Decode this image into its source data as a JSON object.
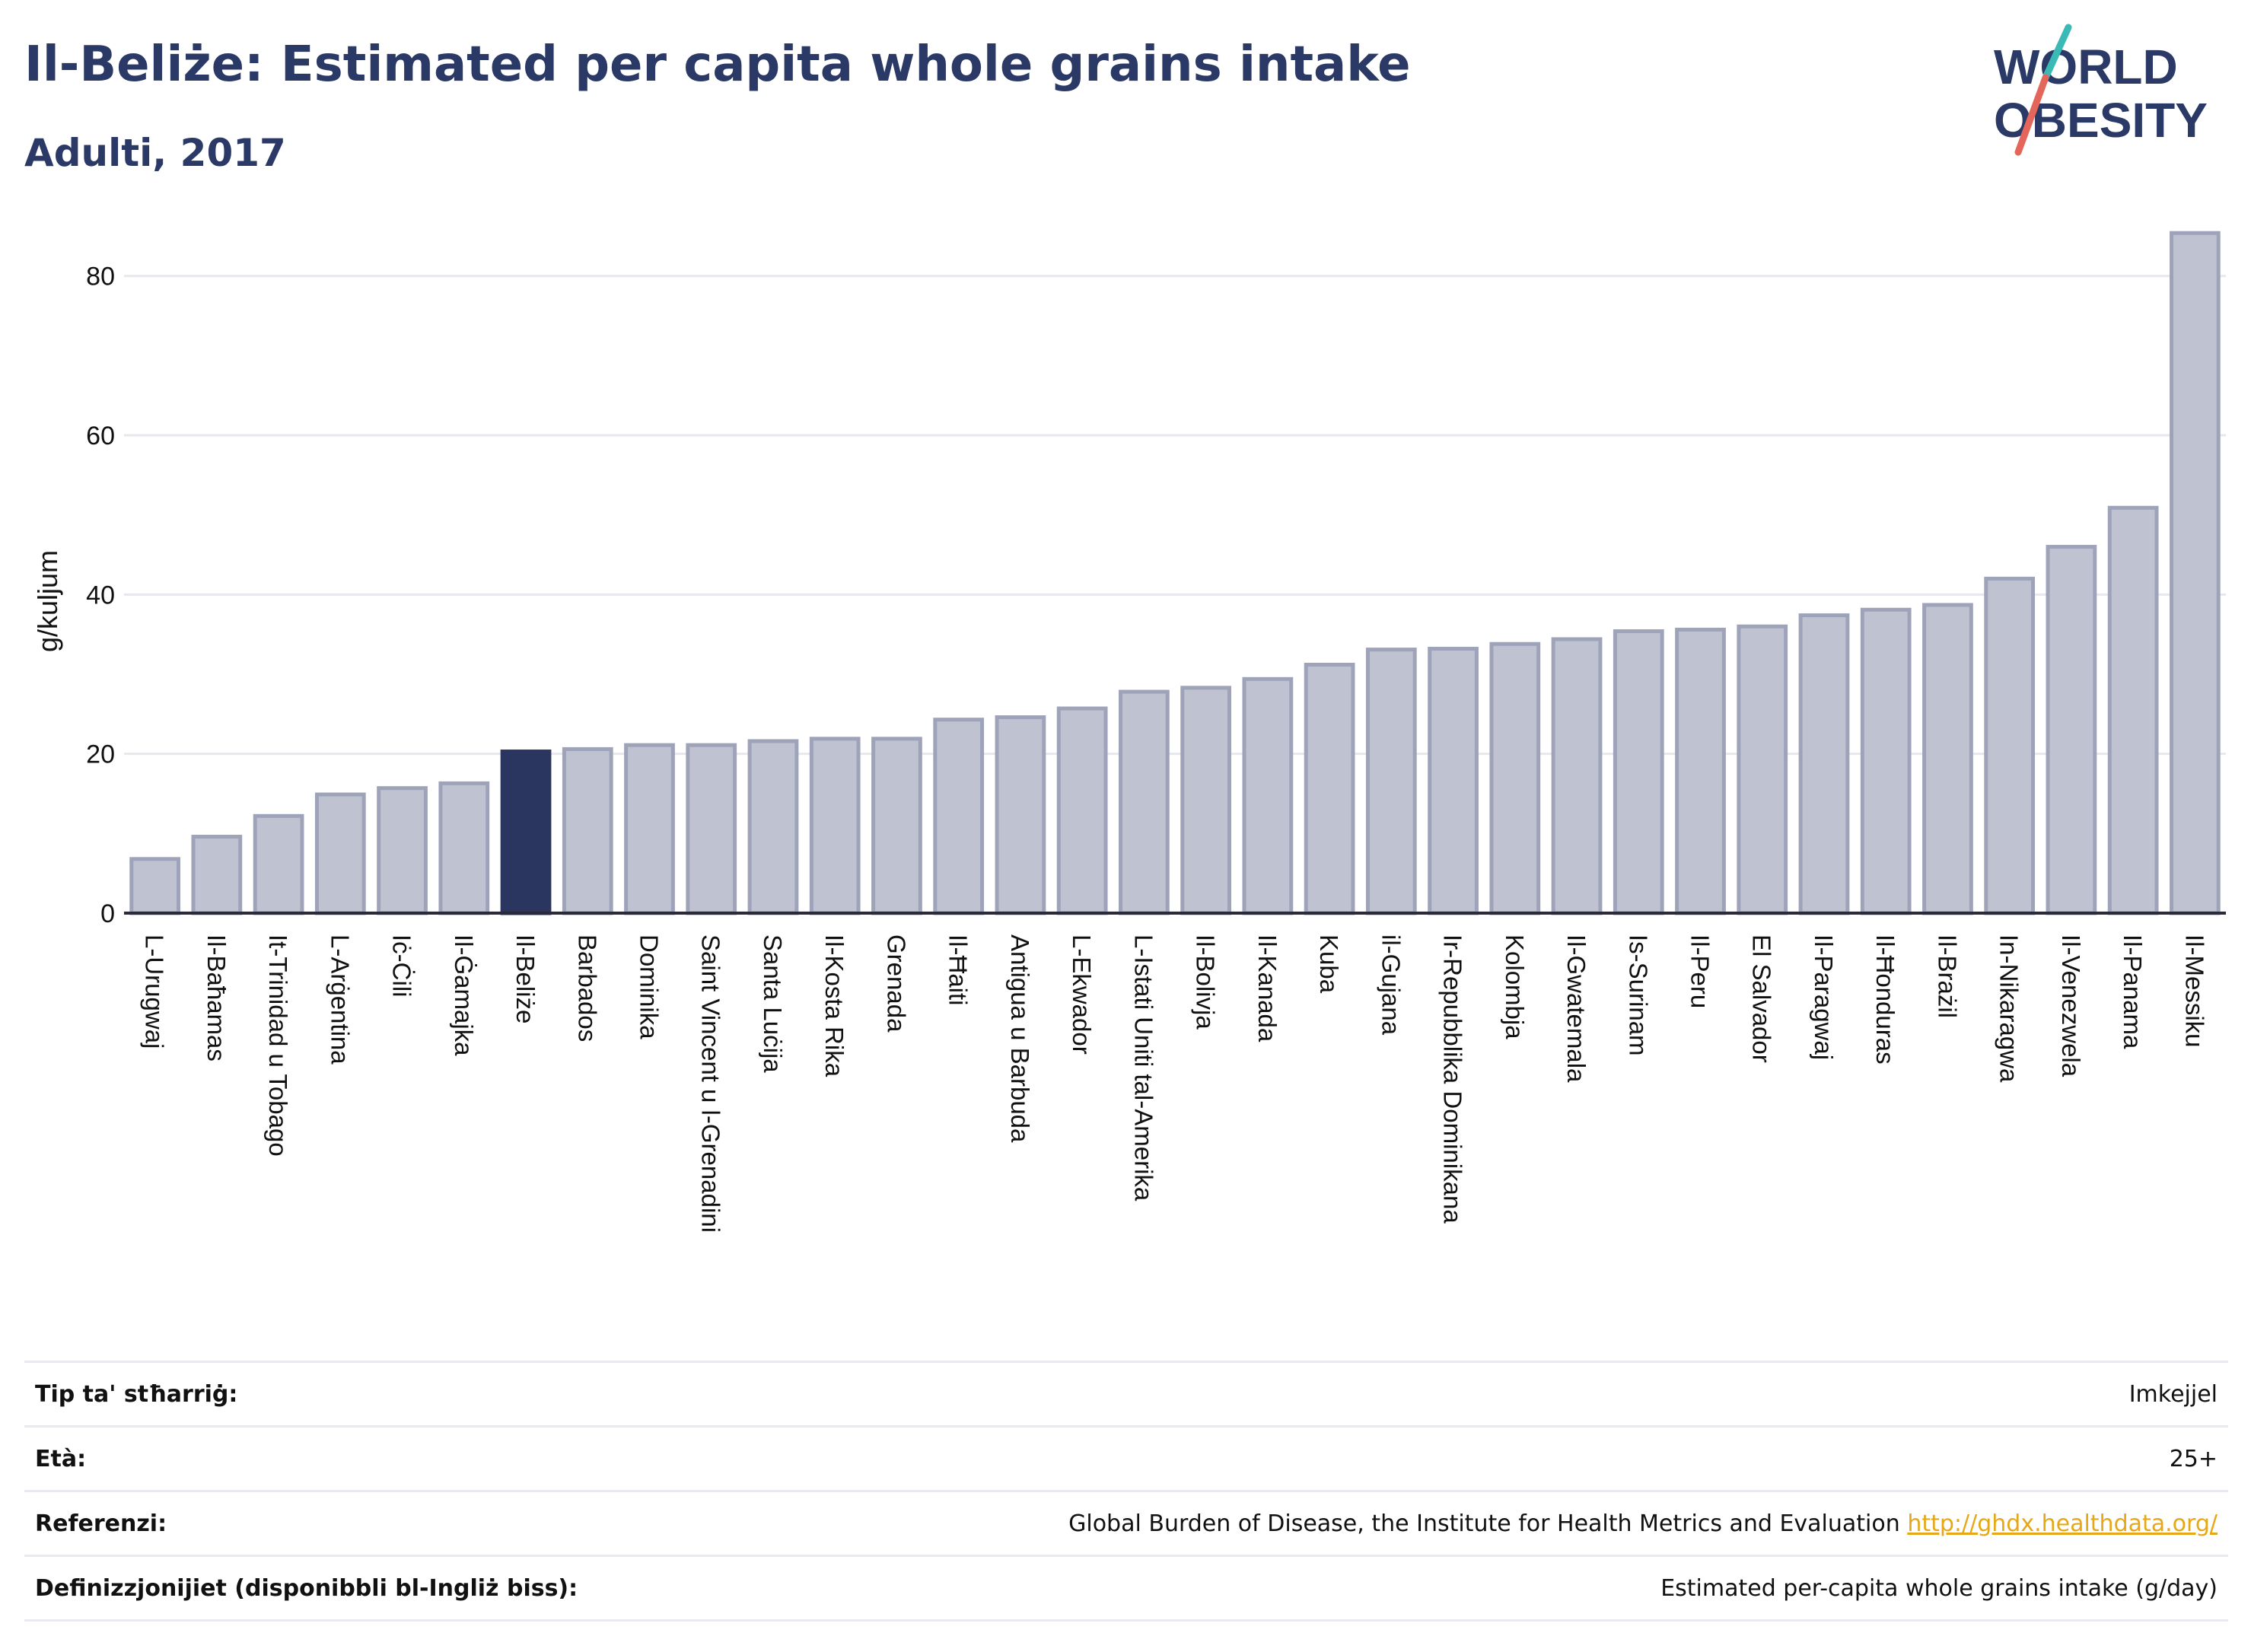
{
  "header": {
    "title": "Il-Beliże: Estimated per capita whole grains intake",
    "subtitle": "Adulti, 2017"
  },
  "logo": {
    "line1": "WORLD",
    "line2": "OBESITY",
    "colors": {
      "text": "#2b3966",
      "slash_teal": "#3bb9b5",
      "slash_red": "#e4665a"
    }
  },
  "chart_data": {
    "type": "bar",
    "ylabel": "g/kuljum",
    "xlabel": "",
    "ylim": [
      0,
      88
    ],
    "yticks": [
      0,
      20,
      40,
      60,
      80
    ],
    "grid": true,
    "highlight": "Il-Beliże",
    "colors": {
      "bar": "#bfc2d0",
      "bar_edge": "#9ea3ba",
      "highlight": "#2b3660",
      "grid": "#e6e8ee",
      "axis": "#2a2a3a"
    },
    "categories": [
      "L-Urugwaj",
      "Il-Baħamas",
      "It-Trinidad u Tobago",
      "L-Arġentina",
      "Iċ-Ċili",
      "Il-Ġamajka",
      "Il-Beliże",
      "Barbados",
      "Dominika",
      "Saint Vincent u l-Grenadini",
      "Santa Luċija",
      "Il-Kosta Rika",
      "Grenada",
      "Il-Ħaiti",
      "Antigua u Barbuda",
      "L-Ekwador",
      "L-Istati Uniti tal-Amerika",
      "Il-Bolivja",
      "Il-Kanada",
      "Kuba",
      "il-Gujana",
      "Ir-Repubblika Dominikana",
      "Kolombja",
      "Il-Gwatemala",
      "Is-Surinam",
      "Il-Peru",
      "El Salvador",
      "Il-Paragwaj",
      "Il-Ħonduras",
      "Il-Brażil",
      "In-Nikaragwa",
      "Il-Venezwela",
      "Il-Panama",
      "Il-Messiku"
    ],
    "values": [
      6.8,
      9.6,
      12.2,
      14.9,
      15.7,
      16.3,
      20.3,
      20.6,
      21.1,
      21.1,
      21.6,
      21.9,
      21.9,
      24.3,
      24.6,
      25.7,
      27.8,
      28.3,
      29.4,
      31.2,
      33.1,
      33.2,
      33.8,
      34.4,
      35.4,
      35.6,
      36.0,
      37.4,
      38.1,
      38.7,
      42.0,
      46.0,
      50.9,
      85.4
    ]
  },
  "info": [
    {
      "label": "Tip ta' stħarriġ:",
      "value": "Imkejjel"
    },
    {
      "label": "Età:",
      "value": "25+"
    },
    {
      "label": "Referenzi:",
      "value": "Global Burden of Disease, the Institute for Health Metrics and Evaluation",
      "link": "http://ghdx.healthdata.org/"
    },
    {
      "label": "Definizzjonijiet (disponibbli bl-Ingliż biss):",
      "value": "Estimated per-capita whole grains intake (g/day)"
    }
  ]
}
